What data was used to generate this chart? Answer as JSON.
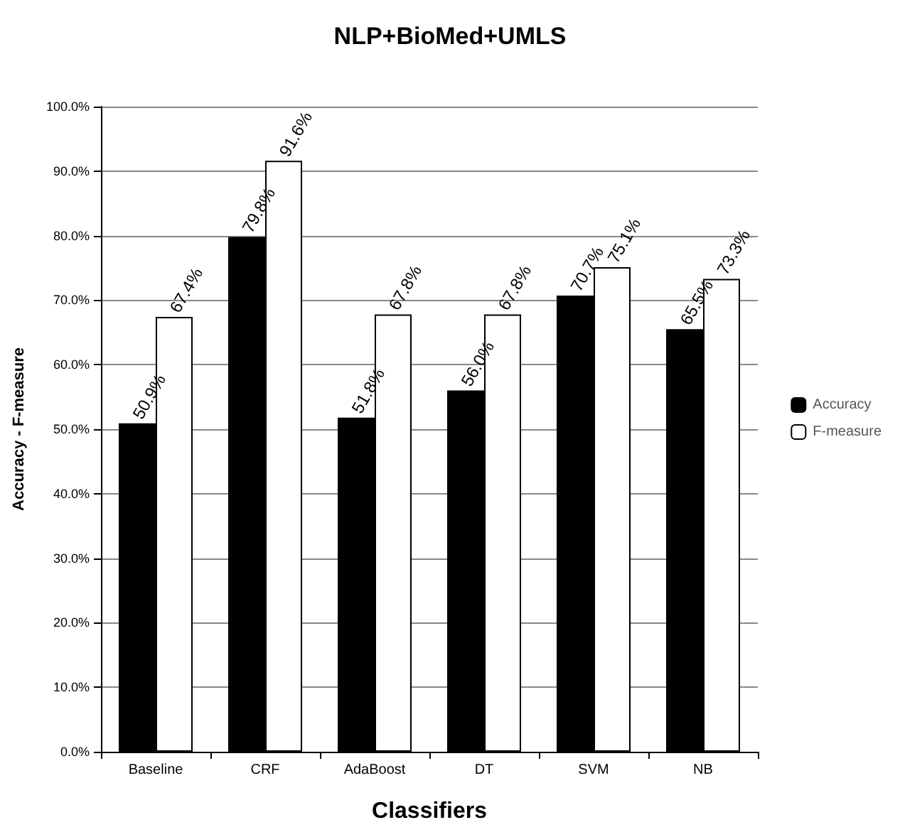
{
  "chart_data": {
    "type": "bar",
    "title": "NLP+BioMed+UMLS",
    "xlabel": "Classifiers",
    "ylabel": "Accuracy - F-measure",
    "categories": [
      "Baseline",
      "CRF",
      "AdaBoost",
      "DT",
      "SVM",
      "NB"
    ],
    "series": [
      {
        "name": "Accuracy",
        "color": "#000000",
        "values": [
          50.9,
          79.8,
          51.8,
          56.0,
          70.7,
          65.5
        ],
        "value_labels": [
          "50.9%",
          "79.8%",
          "51.8%",
          "56.0%",
          "70.7%",
          "65.5%"
        ]
      },
      {
        "name": "F-measure",
        "color": "#ffffff",
        "values": [
          67.4,
          91.6,
          67.8,
          67.8,
          75.1,
          73.3
        ],
        "value_labels": [
          "67.4%",
          "91.6%",
          "67.8%",
          "67.8%",
          "75.1%",
          "73.3%"
        ]
      }
    ],
    "ylim": [
      0,
      100
    ],
    "yticks": [
      {
        "value": 0,
        "label": "0.0%"
      },
      {
        "value": 10,
        "label": "10.0%"
      },
      {
        "value": 20,
        "label": "20.0%"
      },
      {
        "value": 30,
        "label": "30.0%"
      },
      {
        "value": 40,
        "label": "40.0%"
      },
      {
        "value": 50,
        "label": "50.0%"
      },
      {
        "value": 60,
        "label": "60.0%"
      },
      {
        "value": 70,
        "label": "70.0%"
      },
      {
        "value": 80,
        "label": "80.0%"
      },
      {
        "value": 90,
        "label": "90.0%"
      },
      {
        "value": 100,
        "label": "100.0%"
      }
    ],
    "grid": "y",
    "legend": "right"
  }
}
